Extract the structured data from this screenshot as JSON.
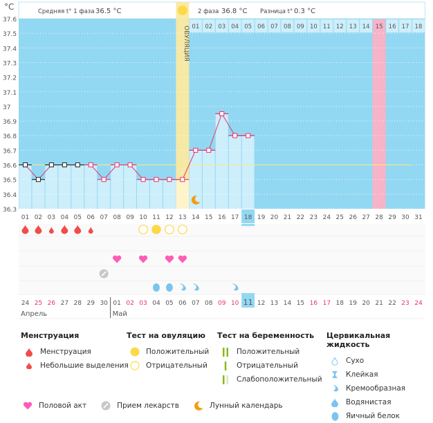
{
  "header": {
    "unit_label": "°C",
    "phase1_label": "Средняя t° 1 фаза",
    "phase1_value": "36.5 °C",
    "phase2_label": "2 фаза",
    "phase2_value": "36.8 °C",
    "diff_label": "Разница t°",
    "diff_value": "0.3 °C",
    "ovulation_label": "ОВУЛЯЦИЯ"
  },
  "colors": {
    "chart_bg": "#93d8f2",
    "bar_fill": "#cdeefb",
    "ovulation_band": "#fbe9a0",
    "pink_day": "#f7b3c8",
    "line": "#e8336b",
    "coverline": "#f5e98a",
    "weekend_text": "#e8336b",
    "period": "#f24b4b",
    "ovulation_test": "#fcd94a",
    "heart": "#ff5cb8",
    "pill": "#c8c8c8",
    "moon": "#f39c12",
    "mucus": "#7cc4f0",
    "pregnancy": "#8ab81a",
    "today_bg": "#93d8f2"
  },
  "chart_data": {
    "type": "line",
    "title": "",
    "ylabel": "°C",
    "ylim": [
      36.3,
      37.6
    ],
    "yticks": [
      "37.6",
      "37.5",
      "37.4",
      "37.3",
      "37.2",
      "37.1",
      "37",
      "36.9",
      "36.8",
      "36.7",
      "36.6",
      "36.5",
      "36.4",
      "36.3"
    ],
    "x": [
      "01",
      "02",
      "03",
      "04",
      "05",
      "06",
      "07",
      "08",
      "09",
      "10",
      "11",
      "12",
      "13",
      "14",
      "15",
      "16",
      "17",
      "18",
      "19",
      "20",
      "21",
      "22",
      "23",
      "24",
      "25",
      "26",
      "27",
      "28",
      "29",
      "30",
      "31"
    ],
    "temperatures": [
      36.6,
      36.5,
      36.6,
      36.6,
      36.6,
      36.6,
      36.5,
      36.6,
      36.6,
      36.5,
      36.5,
      36.5,
      36.5,
      36.7,
      36.7,
      36.95,
      36.8,
      36.8,
      null,
      null,
      null,
      null,
      null,
      null,
      null,
      null,
      null,
      null,
      null,
      null,
      null
    ],
    "coverline": 36.6,
    "ovulation_day": 13,
    "today_day": 18,
    "phase2_days": [
      "01",
      "02",
      "03",
      "04",
      "05",
      "06",
      "07",
      "08",
      "09",
      "10",
      "11",
      "12",
      "13",
      "14",
      "15",
      "16",
      "17",
      "18"
    ],
    "phase2_highlight_day": "15",
    "calendar_dates": [
      "24",
      "25",
      "26",
      "27",
      "28",
      "29",
      "30",
      "01",
      "02",
      "03",
      "04",
      "05",
      "06",
      "07",
      "08",
      "09",
      "10",
      "11",
      "12",
      "13",
      "14",
      "15",
      "16",
      "17",
      "18",
      "19",
      "20",
      "21",
      "22",
      "23",
      "24"
    ],
    "weekend_dates_idx": [
      1,
      2,
      8,
      9,
      15,
      16,
      22,
      23,
      29,
      30
    ],
    "months": [
      {
        "label": "Апрель",
        "start": 1
      },
      {
        "label": "Май",
        "start": 8
      }
    ],
    "menstruation": {
      "1": "full",
      "2": "full",
      "3": "light",
      "4": "full",
      "5": "full",
      "6": "light"
    },
    "ovulation_test": {
      "10": "negative",
      "11": "positive",
      "12": "negative",
      "13": "negative"
    },
    "intercourse": [
      8,
      10,
      12,
      13
    ],
    "medication": [
      7
    ],
    "lunar": [
      14
    ],
    "cervical_fluid": {
      "11": "egg-white",
      "12": "egg-white",
      "13": "creamy",
      "14": "creamy",
      "17": "creamy"
    }
  },
  "legend": {
    "menstruation": {
      "title": "Менструация",
      "items": [
        "Менструация",
        "Небольшие выделения"
      ]
    },
    "ovulation_test": {
      "title": "Тест на овуляцию",
      "items": [
        "Положительный",
        "Отрицательный"
      ]
    },
    "pregnancy_test": {
      "title": "Тест на беременность",
      "items": [
        "Положительный",
        "Отрицательный",
        "Слабоположительный"
      ]
    },
    "cervical_fluid": {
      "title": "Цервикальная жидкость",
      "items": [
        "Сухо",
        "Клейкая",
        "Кремообразная",
        "Водянистая",
        "Яичный белок"
      ]
    },
    "bottom": [
      "Половой акт",
      "Прием лекарств",
      "Лунный календарь"
    ]
  }
}
